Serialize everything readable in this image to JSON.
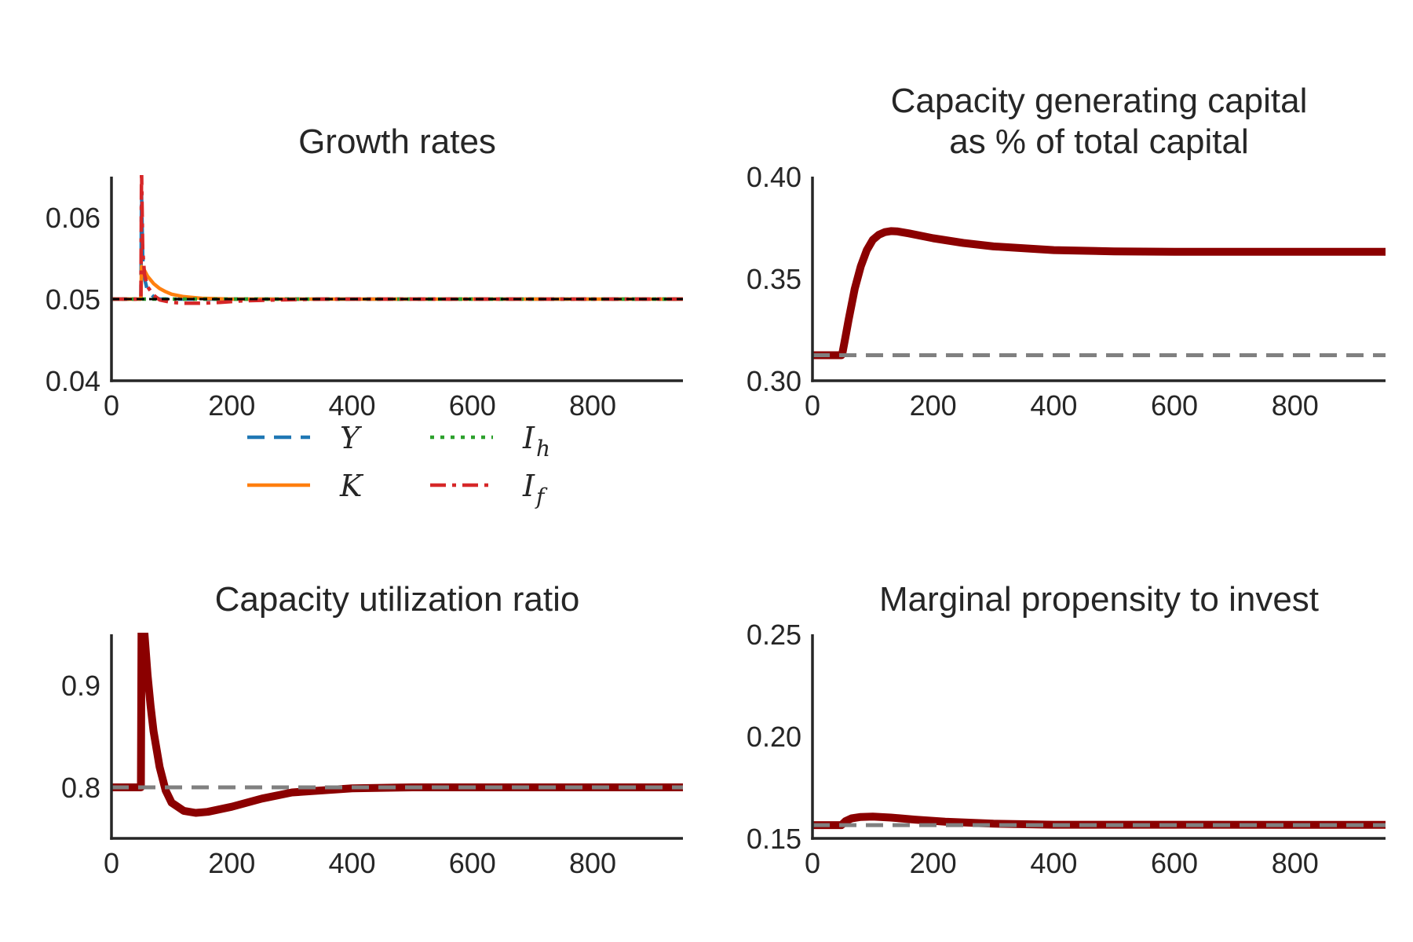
{
  "chart_data": [
    {
      "type": "line",
      "title": "Growth rates",
      "xlim": [
        0,
        950
      ],
      "ylim": [
        0.04,
        0.065
      ],
      "xticks": [
        "0",
        "200",
        "400",
        "600",
        "800"
      ],
      "yticks": [
        "0.04",
        "0.05",
        "0.06"
      ],
      "grid": false,
      "legend": "below",
      "reference": {
        "y": 0.05,
        "color": "#000000",
        "style": "dashed"
      },
      "series": [
        {
          "name": "Y",
          "color": "#1f77b4",
          "style": "dashed",
          "x": [
            0,
            49,
            50,
            52,
            55,
            60,
            70,
            80,
            100,
            120,
            950
          ],
          "y": [
            0.05,
            0.05,
            0.063,
            0.055,
            0.0525,
            0.051,
            0.0503,
            0.05,
            0.05,
            0.05,
            0.05
          ]
        },
        {
          "name": "K",
          "color": "#ff7f0e",
          "style": "solid",
          "x": [
            0,
            49,
            50,
            55,
            60,
            70,
            80,
            90,
            100,
            120,
            150,
            200,
            950
          ],
          "y": [
            0.05,
            0.05,
            0.054,
            0.0535,
            0.0528,
            0.0519,
            0.0513,
            0.0509,
            0.0506,
            0.0503,
            0.0501,
            0.05,
            0.05
          ]
        },
        {
          "name": "I_h",
          "label": "I",
          "sub": "h",
          "color": "#2ca02c",
          "style": "dotted",
          "x": [
            0,
            950
          ],
          "y": [
            0.05,
            0.05
          ]
        },
        {
          "name": "I_f",
          "label": "I",
          "sub": "f",
          "color": "#d62728",
          "style": "dashdot",
          "x": [
            0,
            49,
            50,
            52,
            55,
            60,
            70,
            80,
            100,
            120,
            150,
            180,
            220,
            280,
            350,
            950
          ],
          "y": [
            0.05,
            0.05,
            0.066,
            0.056,
            0.053,
            0.0515,
            0.0505,
            0.0499,
            0.0496,
            0.0495,
            0.0495,
            0.0496,
            0.0498,
            0.0499,
            0.05,
            0.05
          ]
        }
      ]
    },
    {
      "type": "line",
      "title": "Capacity generating capital\nas % of total capital",
      "xlim": [
        0,
        950
      ],
      "ylim": [
        0.3,
        0.4
      ],
      "xticks": [
        "0",
        "200",
        "400",
        "600",
        "800"
      ],
      "yticks": [
        "0.30",
        "0.35",
        "0.40"
      ],
      "grid": false,
      "reference": {
        "y": 0.3125,
        "color": "#808080",
        "style": "dashed"
      },
      "series": [
        {
          "color": "#8b0000",
          "style": "solid",
          "x": [
            0,
            48,
            50,
            55,
            60,
            70,
            80,
            90,
            100,
            110,
            120,
            130,
            140,
            160,
            200,
            250,
            300,
            400,
            500,
            600,
            950
          ],
          "y": [
            0.3125,
            0.3125,
            0.314,
            0.322,
            0.33,
            0.345,
            0.356,
            0.364,
            0.369,
            0.3715,
            0.3728,
            0.3733,
            0.3732,
            0.3722,
            0.3698,
            0.3675,
            0.3658,
            0.364,
            0.3634,
            0.3632,
            0.3632
          ]
        }
      ]
    },
    {
      "type": "line",
      "title": "Capacity utilization ratio",
      "xlim": [
        0,
        950
      ],
      "ylim": [
        0.75,
        0.95
      ],
      "xticks": [
        "0",
        "200",
        "400",
        "600",
        "800"
      ],
      "yticks": [
        "0.8",
        "0.9"
      ],
      "grid": false,
      "reference": {
        "y": 0.8,
        "color": "#808080",
        "style": "dashed"
      },
      "series": [
        {
          "color": "#8b0000",
          "style": "solid",
          "x": [
            0,
            49,
            50,
            52,
            55,
            60,
            65,
            70,
            80,
            90,
            100,
            120,
            140,
            160,
            200,
            250,
            300,
            400,
            500,
            950
          ],
          "y": [
            0.8,
            0.8,
            0.96,
            0.97,
            0.95,
            0.91,
            0.88,
            0.855,
            0.82,
            0.797,
            0.785,
            0.777,
            0.775,
            0.776,
            0.781,
            0.789,
            0.795,
            0.799,
            0.8,
            0.8
          ]
        }
      ]
    },
    {
      "type": "line",
      "title": "Marginal propensity to invest",
      "xlim": [
        0,
        950
      ],
      "ylim": [
        0.15,
        0.25
      ],
      "xticks": [
        "0",
        "200",
        "400",
        "600",
        "800"
      ],
      "yticks": [
        "0.15",
        "0.20",
        "0.25"
      ],
      "grid": false,
      "reference": {
        "y": 0.1565,
        "color": "#808080",
        "style": "dashed"
      },
      "series": [
        {
          "color": "#8b0000",
          "style": "solid",
          "x": [
            0,
            48,
            55,
            65,
            80,
            100,
            130,
            170,
            220,
            300,
            400,
            950
          ],
          "y": [
            0.1565,
            0.1565,
            0.1585,
            0.1598,
            0.1605,
            0.1607,
            0.1602,
            0.1592,
            0.1582,
            0.1572,
            0.1567,
            0.1566
          ]
        }
      ]
    }
  ]
}
